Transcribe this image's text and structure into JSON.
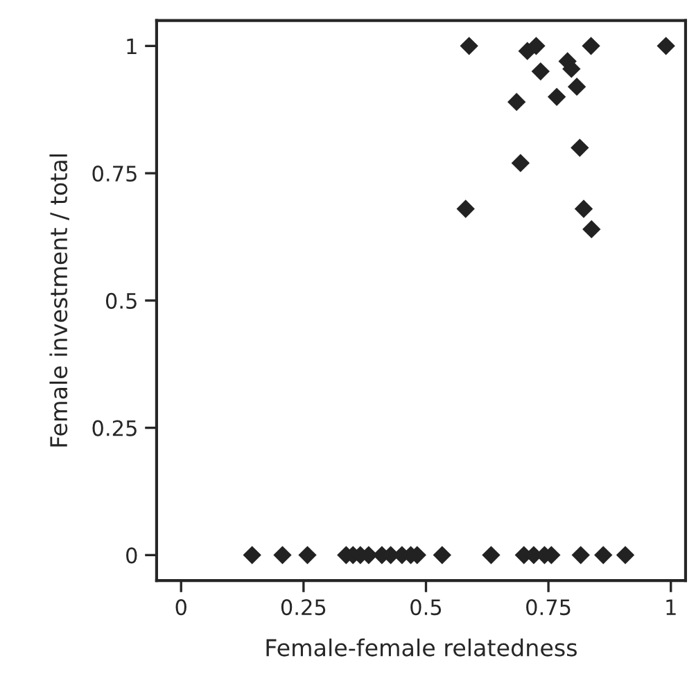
{
  "chart_data": {
    "type": "scatter",
    "xlabel": "Female-female relatedness",
    "ylabel": "Female investment / total",
    "marker": "diamond",
    "grid": false,
    "xlim": [
      -0.05,
      1.03
    ],
    "ylim": [
      -0.05,
      1.05
    ],
    "xticks": [
      0,
      0.25,
      0.5,
      0.75,
      1
    ],
    "yticks": [
      0,
      0.25,
      0.5,
      0.75,
      1
    ],
    "series": [
      {
        "color": "#222222",
        "x": [
          0.588,
          0.707,
          0.725,
          0.837,
          0.99,
          0.734,
          0.789,
          0.797,
          0.808,
          0.685,
          0.767,
          0.814,
          0.693,
          0.581,
          0.822,
          0.838,
          0.145,
          0.207,
          0.258,
          0.337,
          0.351,
          0.366,
          0.383,
          0.41,
          0.428,
          0.451,
          0.469,
          0.482,
          0.533,
          0.633,
          0.7,
          0.72,
          0.742,
          0.756,
          0.816,
          0.862,
          0.907
        ],
        "values": [
          1.0,
          0.99,
          1.0,
          1.0,
          1.0,
          0.95,
          0.97,
          0.955,
          0.92,
          0.89,
          0.9,
          0.8,
          0.77,
          0.68,
          0.68,
          0.64,
          0,
          0,
          0,
          0,
          0,
          0,
          0,
          0,
          0,
          0,
          0,
          0,
          0,
          0,
          0,
          0,
          0,
          0,
          0,
          0,
          0
        ]
      }
    ]
  }
}
